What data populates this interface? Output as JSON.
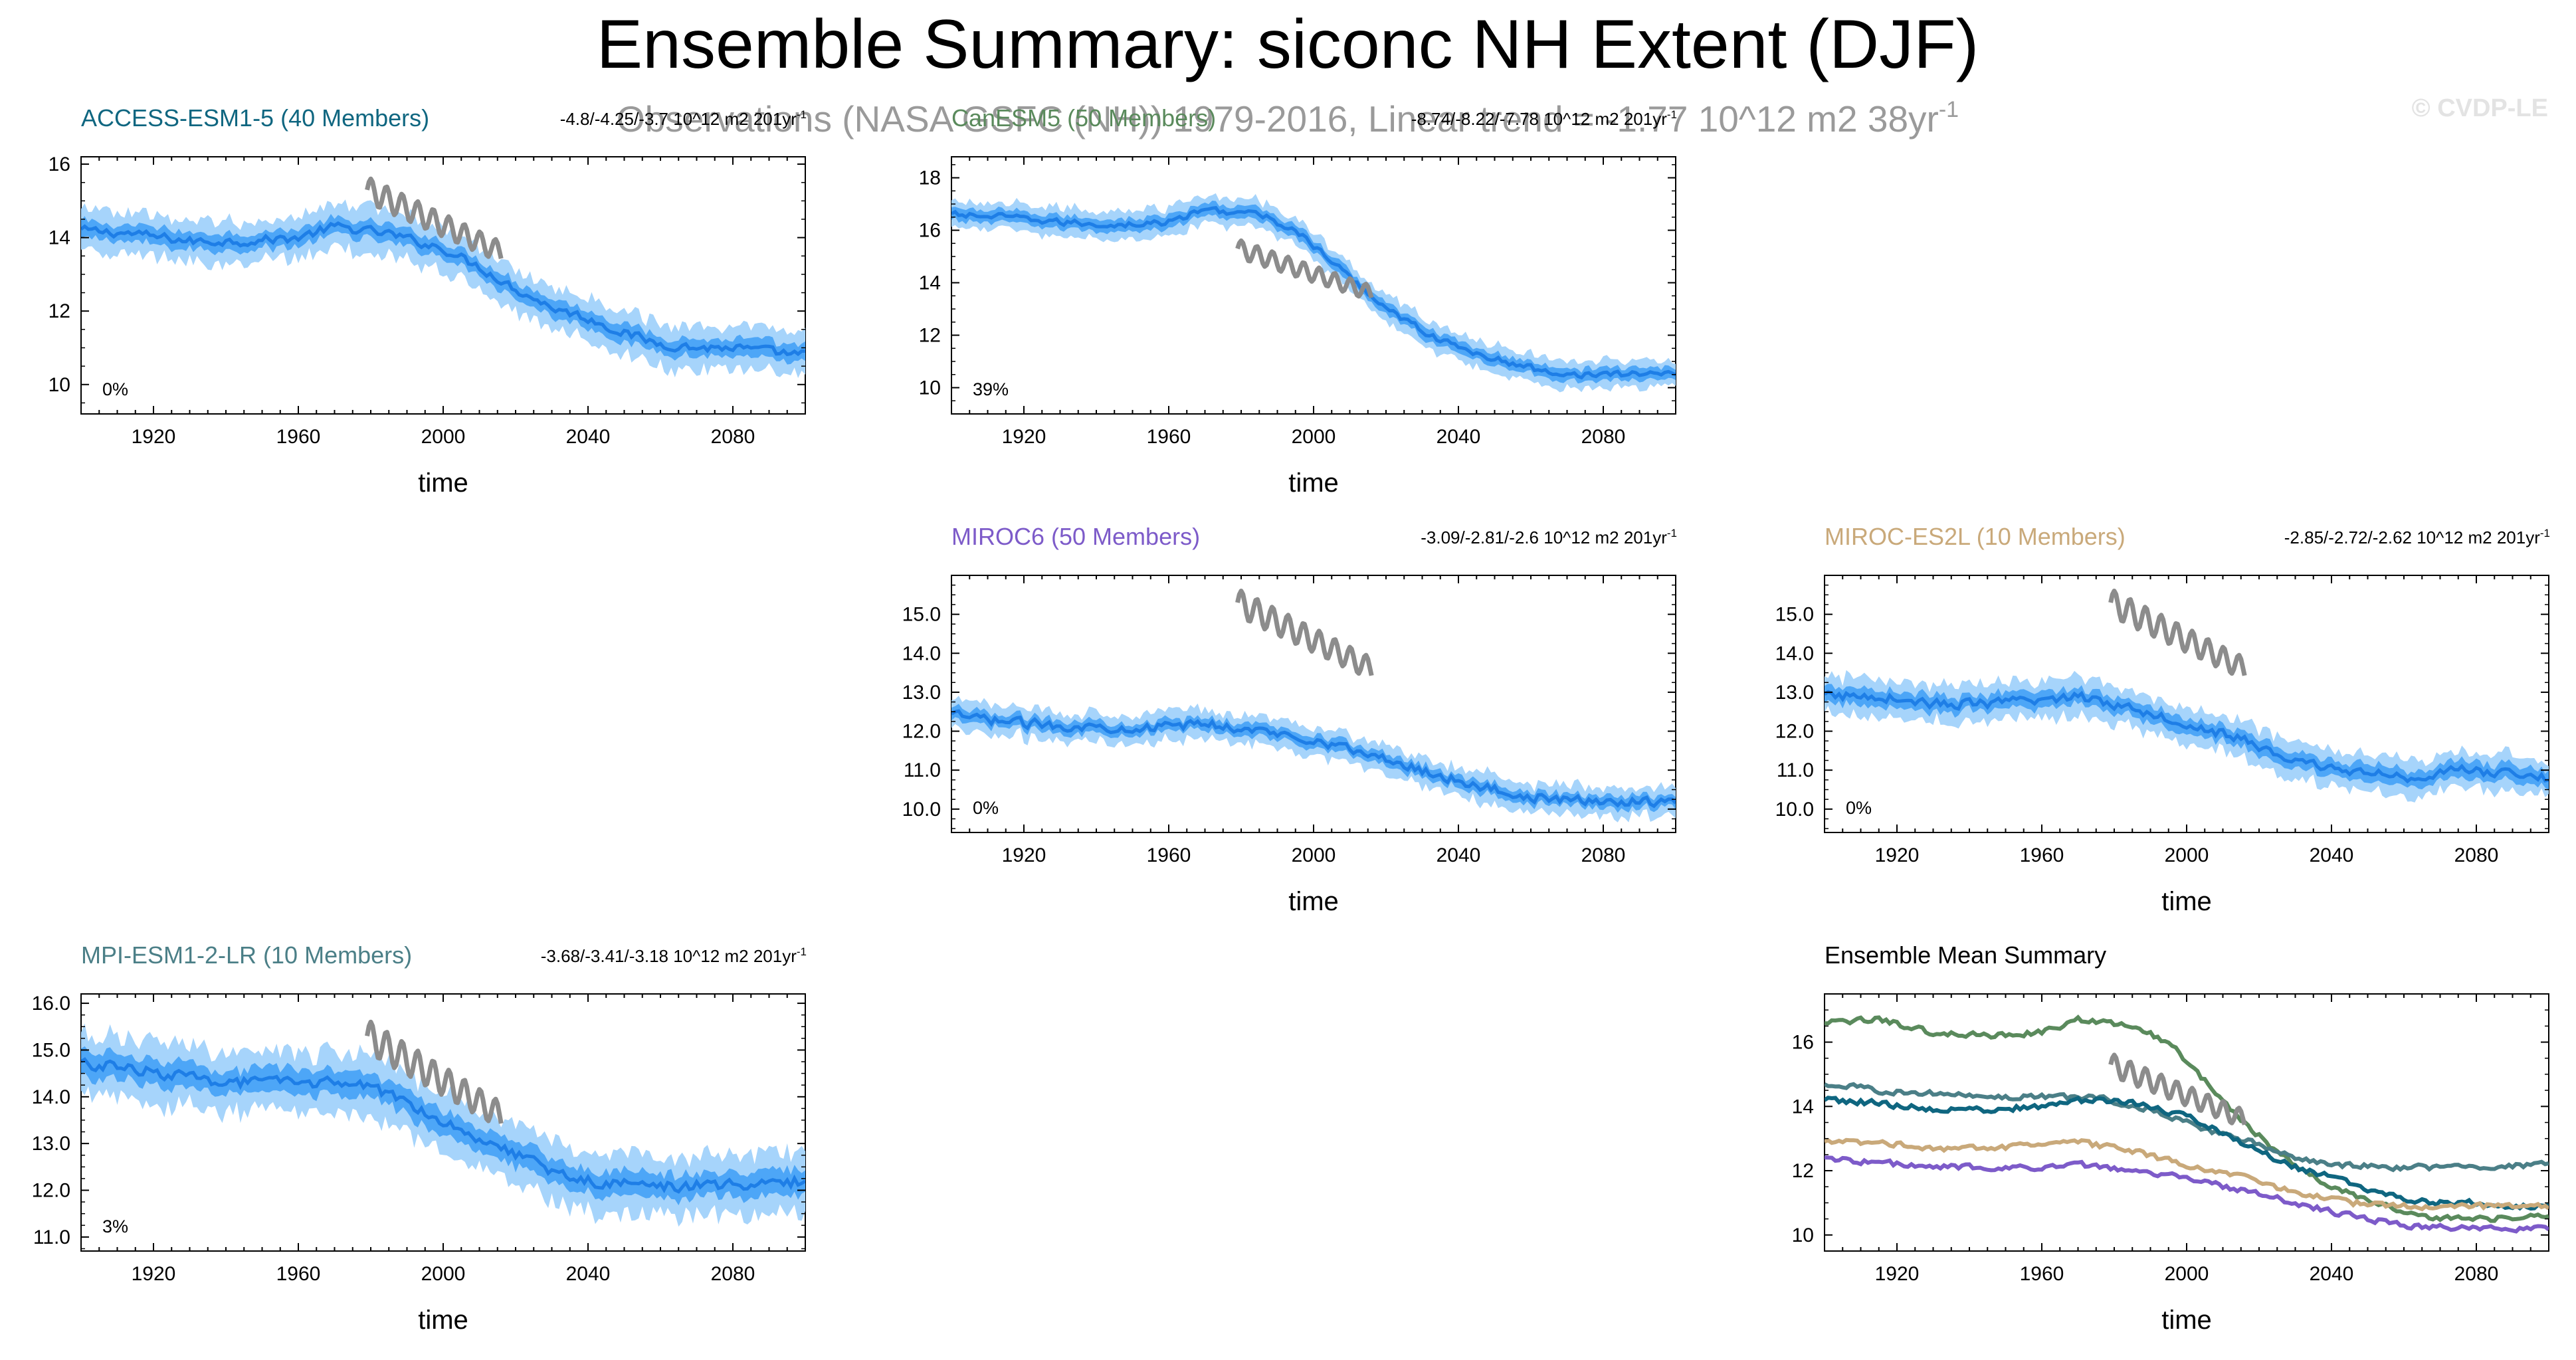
{
  "figure": {
    "title": "Ensemble Summary: siconc NH Extent (DJF)",
    "obs_text": "Observations (NASA GSFC (NH)) 1979-2016, Linear trend = -1.77 10^12 m2 38yr",
    "obs_sup": "-1",
    "copyright": "© CVDP-LE"
  },
  "colors": {
    "band_outer": "#a6d4fb",
    "band_inner": "#4da6f7",
    "ens_mean": "#1e7ee6",
    "obs": "#8c8c8c",
    "access": "#0f6680",
    "cesm": "#5a8a5c",
    "miroc6": "#7d5bc9",
    "mirocesl": "#c9a97a",
    "mpi": "#4b7f87"
  },
  "chart_data": [
    {
      "id": "access",
      "type": "area",
      "title": "ACCESS-ESM1-5 (40 Members)",
      "trend": "-4.8/-4.25/-3.7 10^12 m2 201yr",
      "trend_sup": "-1",
      "pct": "0%",
      "xlabel": "time",
      "xlim": [
        1900,
        2100
      ],
      "ylim": [
        9.2,
        16.2
      ],
      "xticks": [
        "1920",
        "1960",
        "2000",
        "2040",
        "2080"
      ],
      "yticks": [
        "10",
        "12",
        "14",
        "16"
      ],
      "keys": [
        [
          1900,
          14.2
        ],
        [
          1915,
          14.1
        ],
        [
          1930,
          13.9
        ],
        [
          1945,
          13.9
        ],
        [
          1960,
          14.0
        ],
        [
          1970,
          14.3
        ],
        [
          1985,
          14.1
        ],
        [
          2000,
          13.7
        ],
        [
          2010,
          13.2
        ],
        [
          2020,
          12.6
        ],
        [
          2030,
          12.1
        ],
        [
          2040,
          11.8
        ],
        [
          2050,
          11.4
        ],
        [
          2060,
          11.1
        ],
        [
          2070,
          11.0
        ],
        [
          2080,
          11.0
        ],
        [
          2090,
          10.9
        ],
        [
          2100,
          10.8
        ]
      ],
      "spread": [
        0.22,
        0.55
      ],
      "obs": {
        "years": [
          1979,
          2016
        ],
        "values": [
          15.3,
          13.6
        ]
      }
    },
    {
      "id": "cesm",
      "type": "area",
      "title": "CanESM5 (50 Members)",
      "trend": "-8.74/-8.22/-7.78 10^12 m2 201yr",
      "trend_sup": "-1",
      "pct": "39%",
      "xlabel": "time",
      "xlim": [
        1900,
        2100
      ],
      "ylim": [
        9.0,
        18.8
      ],
      "xticks": [
        "1920",
        "1960",
        "2000",
        "2040",
        "2080"
      ],
      "yticks": [
        "10",
        "12",
        "14",
        "16",
        "18"
      ],
      "keys": [
        [
          1900,
          16.6
        ],
        [
          1915,
          16.5
        ],
        [
          1930,
          16.3
        ],
        [
          1945,
          16.2
        ],
        [
          1960,
          16.3
        ],
        [
          1970,
          16.8
        ],
        [
          1985,
          16.6
        ],
        [
          1995,
          16.0
        ],
        [
          2005,
          14.8
        ],
        [
          2015,
          13.6
        ],
        [
          2025,
          12.6
        ],
        [
          2035,
          11.8
        ],
        [
          2045,
          11.3
        ],
        [
          2055,
          10.9
        ],
        [
          2065,
          10.6
        ],
        [
          2075,
          10.5
        ],
        [
          2085,
          10.5
        ],
        [
          2100,
          10.6
        ]
      ],
      "spread": [
        0.22,
        0.5
      ],
      "obs": {
        "years": [
          1979,
          2016
        ],
        "values": [
          15.3,
          13.6
        ]
      }
    },
    {
      "id": "miroc6",
      "type": "area",
      "title": "MIROC6 (50 Members)",
      "trend": "-3.09/-2.81/-2.6 10^12 m2 201yr",
      "trend_sup": "-1",
      "pct": "0%",
      "xlabel": "time",
      "xlim": [
        1900,
        2100
      ],
      "ylim": [
        9.4,
        16.0
      ],
      "xticks": [
        "1920",
        "1960",
        "2000",
        "2040",
        "2080"
      ],
      "yticks": [
        "10.0",
        "11.0",
        "12.0",
        "13.0",
        "14.0",
        "15.0"
      ],
      "keys": [
        [
          1900,
          12.4
        ],
        [
          1920,
          12.2
        ],
        [
          1940,
          12.1
        ],
        [
          1960,
          12.1
        ],
        [
          1970,
          12.2
        ],
        [
          1985,
          12.0
        ],
        [
          2000,
          11.8
        ],
        [
          2015,
          11.4
        ],
        [
          2030,
          11.0
        ],
        [
          2045,
          10.6
        ],
        [
          2060,
          10.3
        ],
        [
          2075,
          10.2
        ],
        [
          2090,
          10.2
        ],
        [
          2100,
          10.2
        ]
      ],
      "spread": [
        0.15,
        0.35
      ],
      "obs": {
        "years": [
          1979,
          2016
        ],
        "values": [
          15.3,
          13.6
        ]
      }
    },
    {
      "id": "mirocesl",
      "type": "area",
      "title": "MIROC-ES2L (10 Members)",
      "trend": "-2.85/-2.72/-2.62 10^12 m2 201yr",
      "trend_sup": "-1",
      "pct": "0%",
      "xlabel": "time",
      "xlim": [
        1900,
        2100
      ],
      "ylim": [
        9.4,
        16.0
      ],
      "xticks": [
        "1920",
        "1960",
        "2000",
        "2040",
        "2080"
      ],
      "yticks": [
        "10.0",
        "11.0",
        "12.0",
        "13.0",
        "14.0",
        "15.0"
      ],
      "keys": [
        [
          1900,
          12.9
        ],
        [
          1915,
          12.9
        ],
        [
          1930,
          12.7
        ],
        [
          1945,
          12.7
        ],
        [
          1960,
          12.8
        ],
        [
          1970,
          12.9
        ],
        [
          1985,
          12.6
        ],
        [
          2000,
          12.2
        ],
        [
          2015,
          11.8
        ],
        [
          2030,
          11.2
        ],
        [
          2045,
          11.0
        ],
        [
          2060,
          10.8
        ],
        [
          2075,
          11.0
        ],
        [
          2090,
          10.9
        ],
        [
          2100,
          10.8
        ]
      ],
      "spread": [
        0.2,
        0.45
      ],
      "obs": {
        "years": [
          1979,
          2016
        ],
        "values": [
          15.3,
          13.6
        ]
      }
    },
    {
      "id": "mpi",
      "type": "area",
      "title": "MPI-ESM1-2-LR (10 Members)",
      "trend": "-3.68/-3.41/-3.18 10^12 m2 201yr",
      "trend_sup": "-1",
      "pct": "3%",
      "xlabel": "time",
      "xlim": [
        1900,
        2100
      ],
      "ylim": [
        10.7,
        16.2
      ],
      "xticks": [
        "1920",
        "1960",
        "2000",
        "2040",
        "2080"
      ],
      "yticks": [
        "11.0",
        "12.0",
        "13.0",
        "14.0",
        "15.0",
        "16.0"
      ],
      "keys": [
        [
          1900,
          14.7
        ],
        [
          1915,
          14.6
        ],
        [
          1930,
          14.4
        ],
        [
          1945,
          14.3
        ],
        [
          1960,
          14.3
        ],
        [
          1975,
          14.3
        ],
        [
          1990,
          13.9
        ],
        [
          2005,
          13.3
        ],
        [
          2020,
          12.8
        ],
        [
          2030,
          12.4
        ],
        [
          2040,
          12.2
        ],
        [
          2055,
          12.1
        ],
        [
          2070,
          12.1
        ],
        [
          2085,
          12.1
        ],
        [
          2100,
          12.2
        ]
      ],
      "spread": [
        0.25,
        0.6
      ],
      "obs": {
        "years": [
          1979,
          2016
        ],
        "values": [
          15.3,
          13.6
        ]
      }
    },
    {
      "id": "summary",
      "type": "line",
      "title": "Ensemble Mean Summary",
      "xlabel": "time",
      "xlim": [
        1900,
        2100
      ],
      "ylim": [
        9.5,
        17.5
      ],
      "xticks": [
        "1920",
        "1960",
        "2000",
        "2040",
        "2080"
      ],
      "yticks": [
        "10",
        "12",
        "14",
        "16"
      ],
      "series": [
        {
          "id": "cesm",
          "keys": [
            [
              1900,
              16.6
            ],
            [
              1915,
              16.7
            ],
            [
              1930,
              16.3
            ],
            [
              1945,
              16.2
            ],
            [
              1960,
              16.3
            ],
            [
              1970,
              16.7
            ],
            [
              1985,
              16.5
            ],
            [
              1995,
              16.0
            ],
            [
              2005,
              14.8
            ],
            [
              2015,
              13.6
            ],
            [
              2025,
              12.6
            ],
            [
              2035,
              11.8
            ],
            [
              2045,
              11.3
            ],
            [
              2055,
              10.9
            ],
            [
              2065,
              10.6
            ],
            [
              2075,
              10.5
            ],
            [
              2085,
              10.5
            ],
            [
              2100,
              10.6
            ]
          ]
        },
        {
          "id": "mpi",
          "keys": [
            [
              1900,
              14.7
            ],
            [
              1915,
              14.5
            ],
            [
              1930,
              14.4
            ],
            [
              1945,
              14.3
            ],
            [
              1960,
              14.3
            ],
            [
              1975,
              14.3
            ],
            [
              1990,
              13.9
            ],
            [
              2005,
              13.3
            ],
            [
              2020,
              12.8
            ],
            [
              2030,
              12.4
            ],
            [
              2040,
              12.2
            ],
            [
              2055,
              12.1
            ],
            [
              2070,
              12.1
            ],
            [
              2085,
              12.1
            ],
            [
              2100,
              12.2
            ]
          ]
        },
        {
          "id": "access",
          "keys": [
            [
              1900,
              14.2
            ],
            [
              1915,
              14.1
            ],
            [
              1930,
              13.9
            ],
            [
              1945,
              13.9
            ],
            [
              1960,
              14.0
            ],
            [
              1970,
              14.2
            ],
            [
              1985,
              14.1
            ],
            [
              2000,
              13.7
            ],
            [
              2010,
              13.2
            ],
            [
              2020,
              12.6
            ],
            [
              2030,
              12.1
            ],
            [
              2040,
              11.8
            ],
            [
              2050,
              11.4
            ],
            [
              2060,
              11.1
            ],
            [
              2070,
              11.0
            ],
            [
              2080,
              11.0
            ],
            [
              2090,
              10.9
            ],
            [
              2100,
              10.9
            ]
          ]
        },
        {
          "id": "mirocesl",
          "keys": [
            [
              1900,
              12.9
            ],
            [
              1915,
              12.9
            ],
            [
              1930,
              12.7
            ],
            [
              1945,
              12.7
            ],
            [
              1960,
              12.8
            ],
            [
              1970,
              12.9
            ],
            [
              1985,
              12.6
            ],
            [
              2000,
              12.2
            ],
            [
              2015,
              11.8
            ],
            [
              2030,
              11.3
            ],
            [
              2045,
              11.0
            ],
            [
              2060,
              10.9
            ],
            [
              2075,
              10.9
            ],
            [
              2090,
              10.9
            ],
            [
              2100,
              10.9
            ]
          ]
        },
        {
          "id": "miroc6",
          "keys": [
            [
              1900,
              12.4
            ],
            [
              1920,
              12.2
            ],
            [
              1940,
              12.1
            ],
            [
              1960,
              12.1
            ],
            [
              1970,
              12.2
            ],
            [
              1985,
              12.0
            ],
            [
              2000,
              11.8
            ],
            [
              2015,
              11.4
            ],
            [
              2030,
              11.0
            ],
            [
              2045,
              10.6
            ],
            [
              2060,
              10.3
            ],
            [
              2075,
              10.2
            ],
            [
              2090,
              10.2
            ],
            [
              2100,
              10.2
            ]
          ]
        }
      ],
      "obs": {
        "years": [
          1979,
          2016
        ],
        "values": [
          15.3,
          13.6
        ]
      }
    }
  ]
}
